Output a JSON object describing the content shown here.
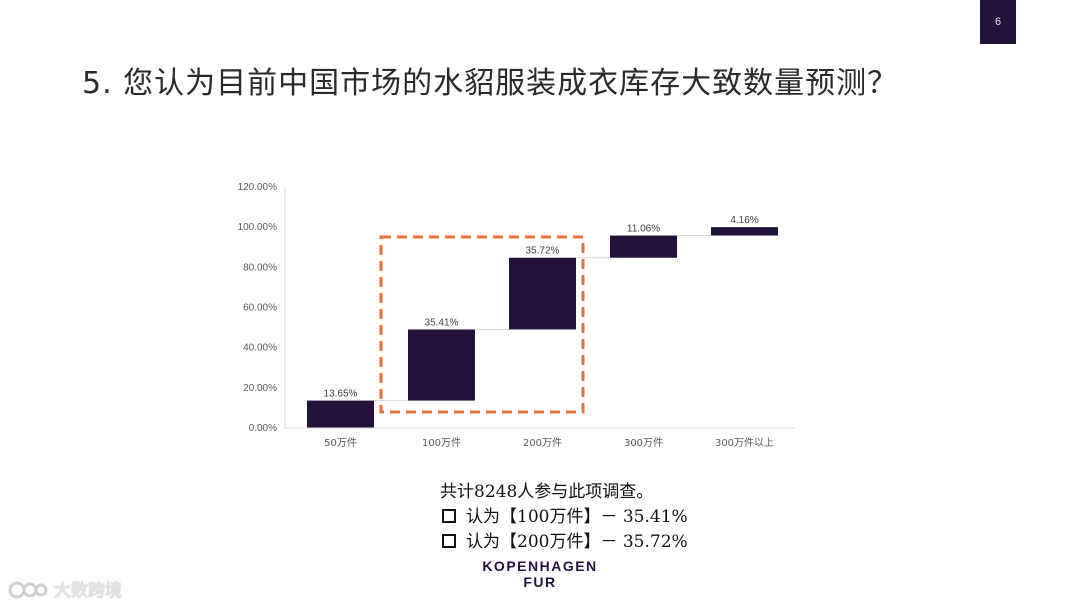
{
  "page_number": "6",
  "title": "5. 您认为目前中国市场的水貂服装成衣库存大致数量预测？",
  "notes": {
    "total": "共计8248人参与此项调查。",
    "items": [
      "认为【100万件】－ 35.41%",
      "认为【200万件】－ 35.72%"
    ]
  },
  "logo": {
    "line1": "KOPENHAGEN",
    "line2": "FUR"
  },
  "watermark": "大数跨境",
  "colors": {
    "bar": "#23123b",
    "highlight": "#e8703a",
    "badge": "#23123b"
  },
  "chart_data": {
    "type": "bar",
    "subtype": "waterfall",
    "categories": [
      "50万件",
      "100万件",
      "200万件",
      "300万件",
      "300万件以上"
    ],
    "values": [
      13.65,
      35.41,
      35.72,
      11.06,
      4.16
    ],
    "labels": [
      "13.65%",
      "35.41%",
      "35.72%",
      "11.06%",
      "4.16%"
    ],
    "y_ticks": [
      "0.00%",
      "20.00%",
      "40.00%",
      "60.00%",
      "80.00%",
      "100.00%",
      "120.00%"
    ],
    "ylim": [
      0,
      120
    ],
    "highlight": [
      "100万件",
      "200万件"
    ],
    "title": "",
    "xlabel": "",
    "ylabel": "",
    "legend": "none",
    "grid": false
  }
}
